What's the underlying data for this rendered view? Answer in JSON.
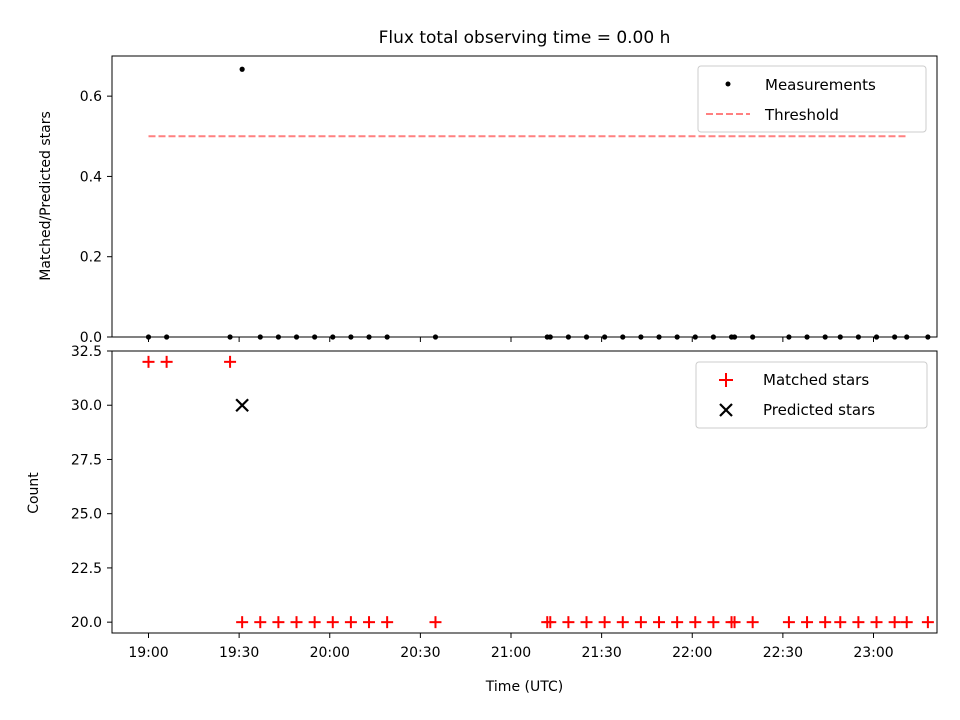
{
  "colors": {
    "measurement": "#000000",
    "threshold": "#ff8080",
    "matched": "#ff0000",
    "predicted": "#000000"
  },
  "chart_data": [
    {
      "type": "scatter",
      "title": "Flux total observing time = 0.00 h",
      "ylabel": "Matched/Predicted stars",
      "xlabel": "",
      "ylim": [
        0,
        0.7
      ],
      "yticks": [
        "0.0",
        "0.2",
        "0.4",
        "0.6"
      ],
      "legend": "top-right",
      "series": [
        {
          "name": "Measurements",
          "marker": "dot",
          "x": [
            "19:00",
            "19:06",
            "19:27",
            "19:31",
            "19:37",
            "19:43",
            "19:49",
            "19:55",
            "20:01",
            "20:07",
            "20:13",
            "20:19",
            "20:35",
            "21:12",
            "21:13",
            "21:19",
            "21:25",
            "21:31",
            "21:37",
            "21:43",
            "21:49",
            "21:55",
            "22:01",
            "22:07",
            "22:13",
            "22:14",
            "22:20",
            "22:32",
            "22:38",
            "22:44",
            "22:49",
            "22:55",
            "23:01",
            "23:07",
            "23:11",
            "23:18"
          ],
          "values": [
            0,
            0,
            0,
            0.667,
            0,
            0,
            0,
            0,
            0,
            0,
            0,
            0,
            0,
            0,
            0,
            0,
            0,
            0,
            0,
            0,
            0,
            0,
            0,
            0,
            0,
            0,
            0,
            0,
            0,
            0,
            0,
            0,
            0,
            0,
            0,
            0
          ]
        },
        {
          "name": "Threshold",
          "style": "dashed",
          "x": [
            "19:00",
            "23:11"
          ],
          "values": [
            0.5,
            0.5
          ]
        }
      ]
    },
    {
      "type": "scatter",
      "title": "",
      "ylabel": "Count",
      "xlabel": "Time (UTC)",
      "ylim": [
        19.5,
        32.5
      ],
      "yticks": [
        "20.0",
        "22.5",
        "25.0",
        "27.5",
        "30.0",
        "32.5"
      ],
      "xticks": [
        "19:00",
        "19:30",
        "20:00",
        "20:30",
        "21:00",
        "21:30",
        "22:00",
        "22:30",
        "23:00"
      ],
      "legend": "top-right",
      "series": [
        {
          "name": "Matched stars",
          "marker": "plus",
          "x": [
            "19:00",
            "19:06",
            "19:27",
            "19:31",
            "19:37",
            "19:43",
            "19:49",
            "19:55",
            "20:01",
            "20:07",
            "20:13",
            "20:19",
            "20:35",
            "21:12",
            "21:13",
            "21:19",
            "21:25",
            "21:31",
            "21:37",
            "21:43",
            "21:49",
            "21:55",
            "22:01",
            "22:07",
            "22:13",
            "22:14",
            "22:20",
            "22:32",
            "22:38",
            "22:44",
            "22:49",
            "22:55",
            "23:01",
            "23:07",
            "23:11",
            "23:18"
          ],
          "values": [
            32,
            32,
            32,
            20,
            20,
            20,
            20,
            20,
            20,
            20,
            20,
            20,
            20,
            20,
            20,
            20,
            20,
            20,
            20,
            20,
            20,
            20,
            20,
            20,
            20,
            20,
            20,
            20,
            20,
            20,
            20,
            20,
            20,
            20,
            20,
            20
          ]
        },
        {
          "name": "Predicted stars",
          "marker": "x",
          "x": [
            "19:31"
          ],
          "values": [
            30
          ]
        }
      ]
    }
  ]
}
